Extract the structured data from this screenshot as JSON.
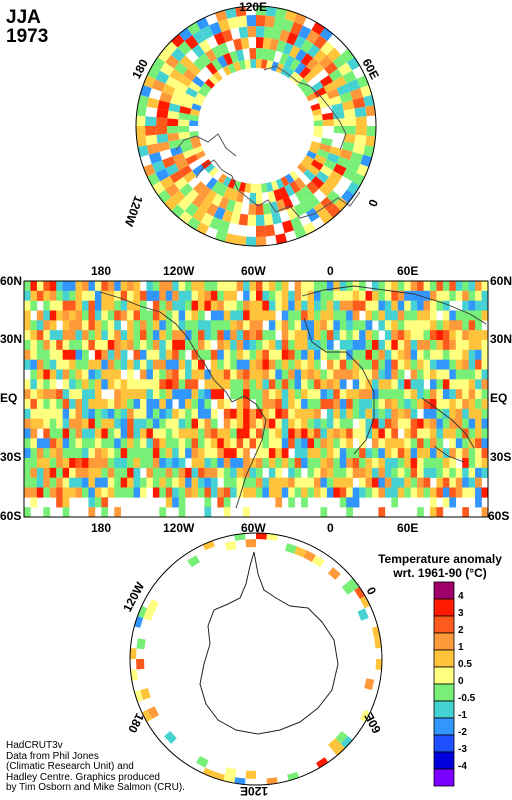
{
  "title": {
    "season": "JJA",
    "year": "1973"
  },
  "north_polar": {
    "labels": {
      "top": "120E",
      "upper_left": "180",
      "upper_right": "60E",
      "lower_left": "120W",
      "lower_right": "0"
    }
  },
  "world_map": {
    "top_lon_labels": [
      "180",
      "120W",
      "60W",
      "0",
      "60E"
    ],
    "bottom_lon_labels": [
      "180",
      "120W",
      "60W",
      "0",
      "60E"
    ],
    "lat_labels": [
      "60N",
      "30N",
      "EQ",
      "30S",
      "60S"
    ]
  },
  "south_polar": {
    "labels": {
      "upper_left": "120W",
      "upper_right": "0",
      "lower_left": "180",
      "lower_right": "60E",
      "bottom": "120E"
    }
  },
  "legend": {
    "title_line1": "Temperature anomaly",
    "title_line2": "wrt. 1961-90  (°C)",
    "levels": [
      {
        "label": "4",
        "color": "#a0006a"
      },
      {
        "label": "3",
        "color": "#ff1a00"
      },
      {
        "label": "2",
        "color": "#ff5a1e"
      },
      {
        "label": "1",
        "color": "#ff9a3a"
      },
      {
        "label": "0.5",
        "color": "#ffc43c"
      },
      {
        "label": "0",
        "color": "#ffff80"
      },
      {
        "label": "-0.5",
        "color": "#78f078"
      },
      {
        "label": "-1",
        "color": "#46d2d2"
      },
      {
        "label": "-2",
        "color": "#3296ff"
      },
      {
        "label": "-3",
        "color": "#1e50ff"
      },
      {
        "label": "-4",
        "color": "#0000dc"
      },
      {
        "label": "",
        "color": "#7a00ff"
      }
    ]
  },
  "credit": {
    "lines": [
      "HadCRUT3v",
      "Data from Phil Jones",
      "(Climatic Research Unit) and",
      "Hadley Centre.  Graphics produced",
      "by Tim Osborn and Mike Salmon (CRU)."
    ]
  }
}
